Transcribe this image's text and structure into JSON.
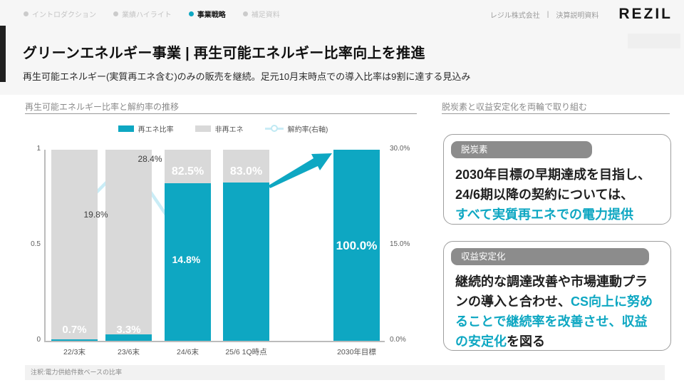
{
  "nav": {
    "items": [
      {
        "label": "イントロダクション",
        "active": false
      },
      {
        "label": "業績ハイライト",
        "active": false
      },
      {
        "label": "事業戦略",
        "active": true
      },
      {
        "label": "補足資料",
        "active": false
      }
    ],
    "company": "レジル株式会社",
    "divider": "|",
    "doc_type": "決算説明資料",
    "logo": "REZIL"
  },
  "header": {
    "title": "グリーンエネルギー事業 | 再生可能エネルギー比率向上を推進",
    "subtitle": "再生可能エネルギー(実質再エネ含む)のみの販売を継続。足元10月末時点での導入比率は9割に達する見込み"
  },
  "left_section": {
    "title": "再生可能エネルギー比率と解約率の推移",
    "footnote": "注釈:電力供給件数ベースの比率"
  },
  "right_section": {
    "title": "脱炭素と収益安定化を両輪で取り組む",
    "cards": [
      {
        "badge": "脱炭素",
        "segments": [
          {
            "text": "2030年目標の早期達成を目指し、",
            "highlight": false,
            "br": true
          },
          {
            "text": "24/6期以降の契約については、",
            "highlight": false,
            "br": true
          },
          {
            "text": "すべて実質再エネでの電力提供",
            "highlight": true,
            "br": false
          }
        ]
      },
      {
        "badge": "収益安定化",
        "segments": [
          {
            "text": "継続的な調達改善や市場連動プランの導入と合わせ、",
            "highlight": false,
            "br": false
          },
          {
            "text": "CS向上に努めることで継続率を改善させ、収益の安定化",
            "highlight": true,
            "br": false
          },
          {
            "text": "を図る",
            "highlight": false,
            "br": false
          }
        ]
      }
    ]
  },
  "chart_data": {
    "type": "bar",
    "stacked": true,
    "title": "再生可能エネルギー比率と解約率の推移",
    "categories": [
      "22/3末",
      "23/6末",
      "24/6末",
      "25/6 1Q時点",
      "2030年目標"
    ],
    "series": [
      {
        "name": "再エネ比率",
        "type": "bar",
        "axis": "left",
        "color": "#0ea7c2",
        "values": [
          0.7,
          3.3,
          82.5,
          83.0,
          100.0
        ]
      },
      {
        "name": "非再エネ",
        "type": "bar",
        "axis": "left",
        "color": "#d9d9d9",
        "values": [
          99.3,
          96.7,
          17.5,
          17.0,
          0.0
        ]
      },
      {
        "name": "解約率(右軸)",
        "type": "line",
        "axis": "right",
        "color": "#c9ecf6",
        "values": [
          19.8,
          28.4,
          14.8,
          null,
          null
        ]
      }
    ],
    "bar_labels": [
      "0.7%",
      "3.3%",
      "82.5%",
      "83.0%",
      "100.0%"
    ],
    "bar_label_pos": [
      "bottom",
      "bottom",
      "top",
      "top",
      "middle"
    ],
    "line_labels": [
      "19.8%",
      "28.4%",
      "14.8%"
    ],
    "left_axis": {
      "min": 0,
      "max": 1,
      "ticks": [
        "1",
        "0.5",
        "0"
      ]
    },
    "right_axis": {
      "min": "0.0%",
      "max": "30.0%",
      "ticks": [
        "30.0%",
        "15.0%",
        "0.0%"
      ]
    },
    "annotation": "growth arrow from 25/6 1Q bar toward 2030 target bar",
    "legend_position": "top-center",
    "grid": false
  },
  "colors": {
    "accent_teal": "#0ea7c2",
    "bar_gray": "#d9d9d9",
    "churn_line": "#c9ecf6",
    "badge_gray": "#8c8c8c",
    "header_band": "#f6f6f6"
  }
}
